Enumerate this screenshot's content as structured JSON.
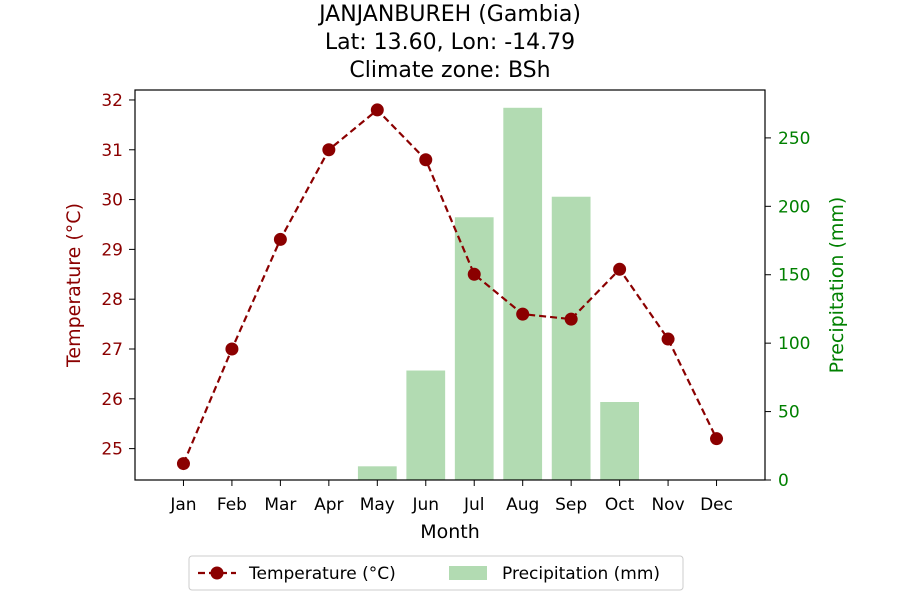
{
  "chart_data": {
    "type": "bar+line",
    "title_lines": [
      "JANJANBUREH (Gambia)",
      "Lat: 13.60, Lon: -14.79",
      "Climate zone: BSh"
    ],
    "xlabel": "Month",
    "ylabel_left": "Temperature (°C)",
    "ylabel_right": "Precipitation (mm)",
    "categories": [
      "Jan",
      "Feb",
      "Mar",
      "Apr",
      "May",
      "Jun",
      "Jul",
      "Aug",
      "Sep",
      "Oct",
      "Nov",
      "Dec"
    ],
    "temperature": {
      "name": "Temperature (°C)",
      "values": [
        24.7,
        27.0,
        29.2,
        31.0,
        31.8,
        30.8,
        28.5,
        27.7,
        27.6,
        28.6,
        27.2,
        25.2
      ],
      "color": "#8b0000"
    },
    "precipitation": {
      "name": "Precipitation (mm)",
      "values": [
        0,
        0,
        0,
        0,
        10,
        80,
        192,
        272,
        207,
        57,
        0,
        0
      ],
      "color": "#b2dbb2"
    },
    "ylim_left": [
      24.37,
      32.2
    ],
    "ylim_right": [
      0,
      285
    ],
    "yticks_left": [
      "25",
      "26",
      "27",
      "28",
      "29",
      "30",
      "31",
      "32"
    ],
    "yticks_right": [
      "0",
      "50",
      "100",
      "150",
      "200",
      "250"
    ],
    "left_axis_color": "#8b0000",
    "right_axis_color": "#008000",
    "grid": false,
    "legend_position": "bottom"
  }
}
